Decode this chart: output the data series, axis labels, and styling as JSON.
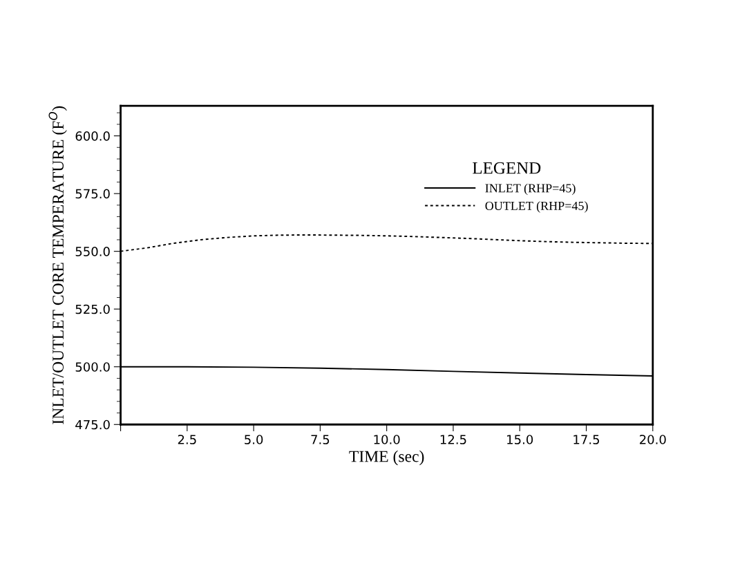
{
  "chart_data": {
    "type": "line",
    "xlabel": "TIME (sec)",
    "ylabel": "INLET/OUTLET CORE TEMPERATURE (F$^{O}$)",
    "legend_title": "LEGEND",
    "legend": "top right",
    "grid": false,
    "xlim": [
      0,
      20
    ],
    "ylim": [
      475,
      613
    ],
    "xticks": [
      {
        "value": 0,
        "label": null
      },
      {
        "value": 2.5,
        "label": "2.5"
      },
      {
        "value": 5,
        "label": "5.0"
      },
      {
        "value": 7.5,
        "label": "7.5"
      },
      {
        "value": 10,
        "label": "10.0"
      },
      {
        "value": 12.5,
        "label": "12.5"
      },
      {
        "value": 15,
        "label": "15.0"
      },
      {
        "value": 17.5,
        "label": "17.5"
      },
      {
        "value": 20,
        "label": "20.0"
      }
    ],
    "yticks": [
      {
        "value": 475,
        "label": "475.0"
      },
      {
        "value": 500,
        "label": "500.0"
      },
      {
        "value": 525,
        "label": "525.0"
      },
      {
        "value": 550,
        "label": "550.0"
      },
      {
        "value": 575,
        "label": "575.0"
      },
      {
        "value": 600,
        "label": "600.0"
      }
    ],
    "series": [
      {
        "name": "INLET (RHP=45)",
        "color": "#000000",
        "line_style": "solid",
        "x": [
          0,
          2.5,
          5,
          7.5,
          10,
          12.5,
          15,
          17.5,
          20
        ],
        "values": [
          500,
          500,
          499.8,
          499.4,
          498.8,
          498,
          497.3,
          496.6,
          496
        ]
      },
      {
        "name": "OUTLET (RHP=45)",
        "color": "#000000",
        "line_style": "dotted",
        "x": [
          0,
          1,
          2,
          3,
          4,
          5,
          6,
          7,
          8,
          9,
          10,
          11,
          12,
          13,
          14,
          15,
          16,
          17,
          18,
          19,
          20
        ],
        "values": [
          550,
          551.5,
          553.5,
          555,
          556,
          556.7,
          557,
          557.1,
          557,
          556.9,
          556.7,
          556.4,
          556,
          555.6,
          555.1,
          554.6,
          554.2,
          553.9,
          553.7,
          553.5,
          553.4
        ]
      }
    ]
  }
}
